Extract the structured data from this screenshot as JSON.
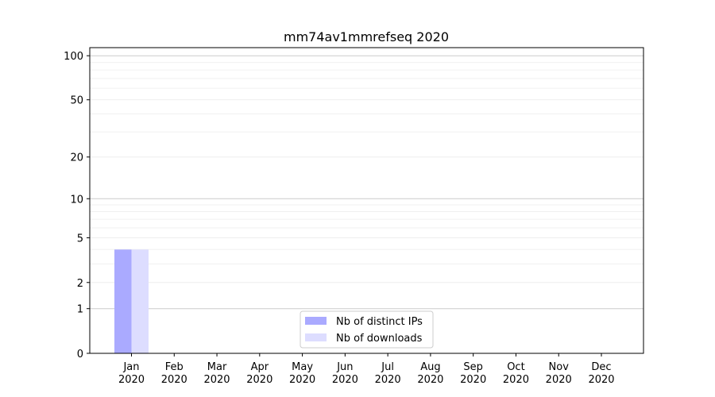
{
  "chart_data": {
    "type": "bar",
    "title": "mm74av1mmrefseq 2020",
    "xlabel": "",
    "ylabel": "",
    "yscale": "log(1+y)",
    "ylim": [
      0,
      114
    ],
    "yticks": [
      0,
      1,
      2,
      5,
      10,
      20,
      50,
      100
    ],
    "ytick_labels": [
      "0",
      "1",
      "2",
      "5",
      "10",
      "20",
      "50",
      "100"
    ],
    "grid": true,
    "categories": [
      "Jan\n2020",
      "Feb\n2020",
      "Mar\n2020",
      "Apr\n2020",
      "May\n2020",
      "Jun\n2020",
      "Jul\n2020",
      "Aug\n2020",
      "Sep\n2020",
      "Oct\n2020",
      "Nov\n2020",
      "Dec\n2020"
    ],
    "category_lines": [
      [
        "Jan",
        "2020"
      ],
      [
        "Feb",
        "2020"
      ],
      [
        "Mar",
        "2020"
      ],
      [
        "Apr",
        "2020"
      ],
      [
        "May",
        "2020"
      ],
      [
        "Jun",
        "2020"
      ],
      [
        "Jul",
        "2020"
      ],
      [
        "Aug",
        "2020"
      ],
      [
        "Sep",
        "2020"
      ],
      [
        "Oct",
        "2020"
      ],
      [
        "Nov",
        "2020"
      ],
      [
        "Dec",
        "2020"
      ]
    ],
    "series": [
      {
        "name": "Nb of distinct IPs",
        "color": "#aaaaff",
        "values": [
          4,
          0,
          0,
          0,
          0,
          0,
          0,
          0,
          0,
          0,
          0,
          0
        ]
      },
      {
        "name": "Nb of downloads",
        "color": "#ddddff",
        "values": [
          4,
          0,
          0,
          0,
          0,
          0,
          0,
          0,
          0,
          0,
          0,
          0
        ]
      }
    ],
    "legend_placement": "bottom-center"
  }
}
